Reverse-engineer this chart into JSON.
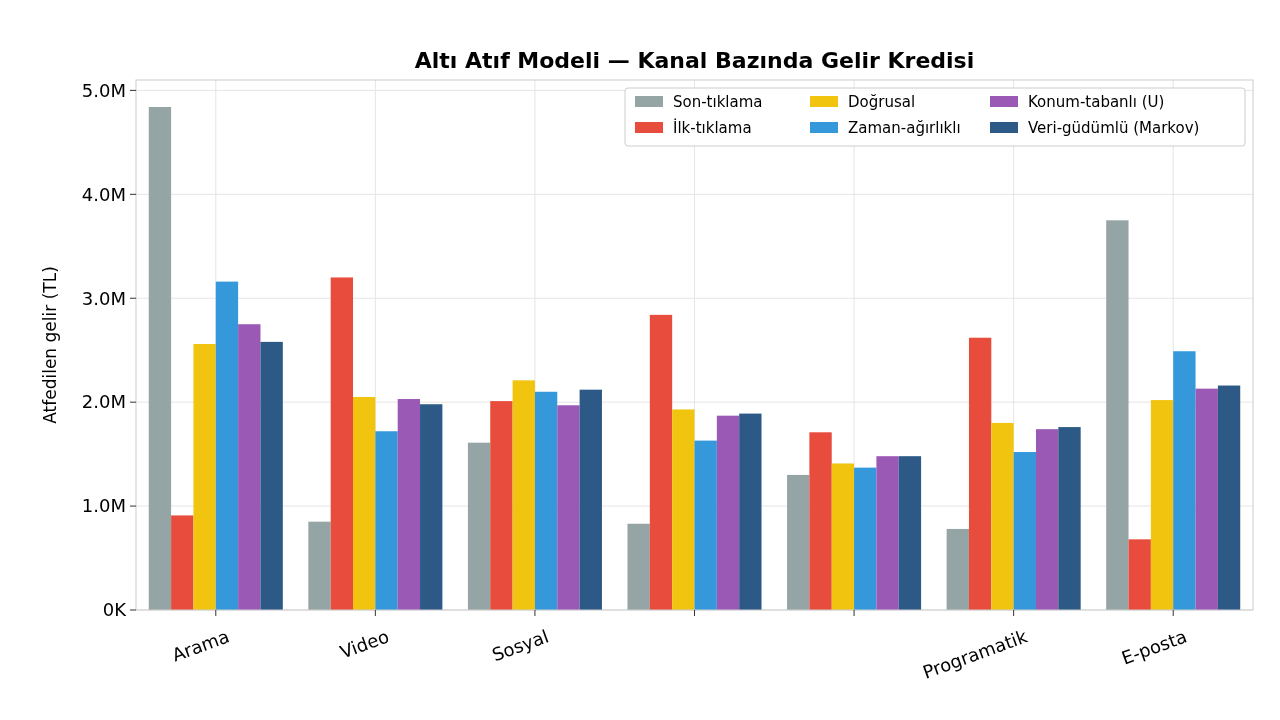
{
  "chart_data": {
    "type": "bar",
    "title": "Altı Atıf Modeli — Kanal Bazında Gelir Kredisi",
    "ylabel": "Atfedilen gelir (TL)",
    "categories": [
      "Arama",
      "Video",
      "Sosyal",
      null,
      null,
      "Programatik",
      "E-posta"
    ],
    "series": [
      {
        "name": "Son-tıklama",
        "color": "#95a5a6",
        "values": [
          4840000,
          850000,
          1610000,
          830000,
          1300000,
          780000,
          3750000
        ]
      },
      {
        "name": "İlk-tıklama",
        "color": "#e74c3c",
        "values": [
          910000,
          3200000,
          2010000,
          2840000,
          1710000,
          2620000,
          680000
        ]
      },
      {
        "name": "Doğrusal",
        "color": "#f1c40f",
        "values": [
          2560000,
          2050000,
          2210000,
          1930000,
          1410000,
          1800000,
          2020000
        ]
      },
      {
        "name": "Zaman-ağırlıklı",
        "color": "#3498db",
        "values": [
          3160000,
          1720000,
          2100000,
          1630000,
          1370000,
          1520000,
          2490000
        ]
      },
      {
        "name": "Konum-tabanlı (U)",
        "color": "#9b59b6",
        "values": [
          2750000,
          2030000,
          1970000,
          1870000,
          1480000,
          1740000,
          2130000
        ]
      },
      {
        "name": "Veri-güdümlü (Markov)",
        "color": "#2c5985",
        "values": [
          2580000,
          1980000,
          2120000,
          1890000,
          1480000,
          1760000,
          2160000
        ]
      }
    ],
    "ylim": [
      0,
      5100000
    ],
    "yticks": [
      {
        "value": 0,
        "label": "0K"
      },
      {
        "value": 1000000,
        "label": "1.0M"
      },
      {
        "value": 2000000,
        "label": "2.0M"
      },
      {
        "value": 3000000,
        "label": "3.0M"
      },
      {
        "value": 4000000,
        "label": "4.0M"
      },
      {
        "value": 5000000,
        "label": "5.0M"
      }
    ],
    "grid": true,
    "legend": "top right"
  }
}
